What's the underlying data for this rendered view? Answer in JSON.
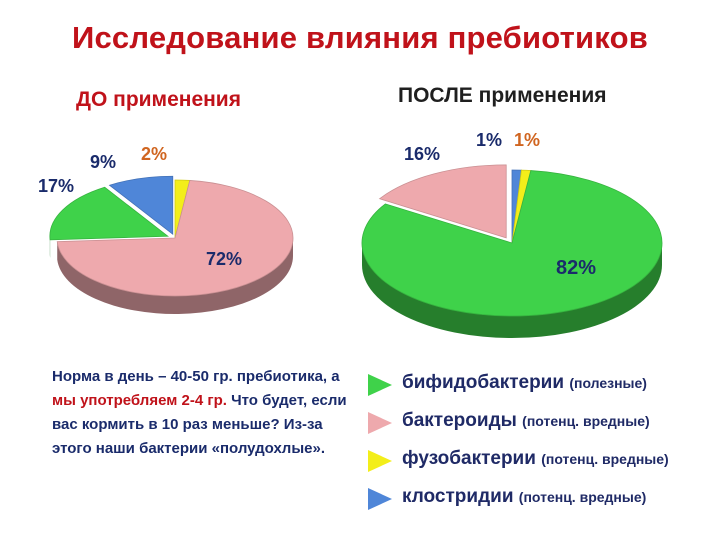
{
  "title": "Исследование влияния пребиотиков",
  "colors": {
    "title": "#c0121a",
    "bifido": "#3fd24a",
    "bacteroides": "#eea9ad",
    "fuso": "#f3ee1a",
    "clostridia": "#4f86d8"
  },
  "chart_data": [
    {
      "type": "pie",
      "title": "ДО применения",
      "labels": [
        "бифидобактерии",
        "бактероиды",
        "фузобактерии",
        "клостридии"
      ],
      "values": [
        17,
        72,
        2,
        9
      ],
      "value_labels": [
        "17%",
        "72%",
        "2%",
        "9%"
      ]
    },
    {
      "type": "pie",
      "title": "ПОСЛЕ применения",
      "labels": [
        "бифидобактерии",
        "бактероиды",
        "фузобактерии",
        "клостридии"
      ],
      "values": [
        82,
        16,
        1,
        1
      ],
      "value_labels": [
        "82%",
        "16%",
        "1%",
        "1%"
      ]
    }
  ],
  "note": {
    "part1": "Норма в день – 40-50 гр. пребиотика, а ",
    "part2": "мы употребляем 2-4 гр.",
    "part3": " Что будет, если вас кормить в 10 раз меньше? Из-за этого наши бактерии «полудохлые»."
  },
  "legend": [
    {
      "name": "бифидобактерии",
      "note": "(полезные)",
      "icon": "green-triangle-icon"
    },
    {
      "name": "бактероиды",
      "note": "(потенц. вредные)",
      "icon": "pink-triangle-icon"
    },
    {
      "name": "фузобактерии",
      "note": "(потенц. вредные)",
      "icon": "yellow-triangle-icon"
    },
    {
      "name": "клостридии",
      "note": "(потенц. вредные)",
      "icon": "blue-triangle-icon"
    }
  ]
}
